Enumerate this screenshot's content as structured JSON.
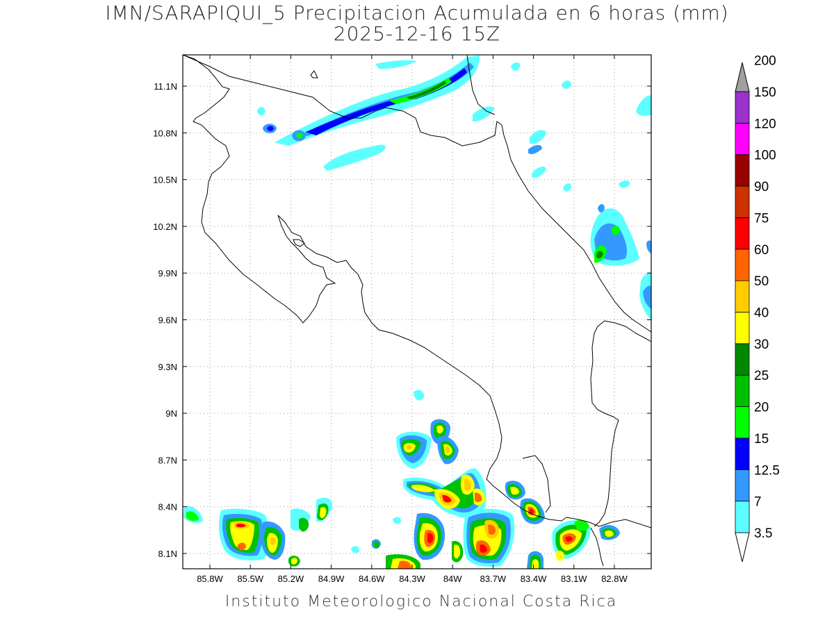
{
  "title": {
    "line1": "IMN/SARAPIQUI_5 Precipitacion Acumulada en 6 horas (mm)",
    "line2": "2025-12-16 15Z"
  },
  "footer": "Instituto Meteorologico Nacional Costa Rica",
  "map": {
    "lat_ticks": [
      "11.1N",
      "10.8N",
      "10.5N",
      "10.2N",
      "9.9N",
      "9.6N",
      "9.3N",
      "9N",
      "8.7N",
      "8.4N",
      "8.1N"
    ],
    "lon_ticks": [
      "85.8W",
      "85.5W",
      "85.2W",
      "84.9W",
      "84.6W",
      "84.3W",
      "84W",
      "83.7W",
      "83.4W",
      "83.1W",
      "82.8W"
    ],
    "grid": true
  },
  "legend": {
    "units": "mm",
    "levels": [
      "3.5",
      "7",
      "12.5",
      "15",
      "20",
      "25",
      "30",
      "40",
      "50",
      "60",
      "75",
      "90",
      "100",
      "120",
      "150",
      "200"
    ],
    "colors": [
      "#5cffff",
      "#3399ff",
      "#0000ff",
      "#00ff00",
      "#00c000",
      "#008800",
      "#ffff00",
      "#ffcc00",
      "#ff6600",
      "#ff0000",
      "#cc3300",
      "#990000",
      "#ff00ff",
      "#9933cc",
      "#f2f2f2",
      "#a0a0a0"
    ]
  }
}
